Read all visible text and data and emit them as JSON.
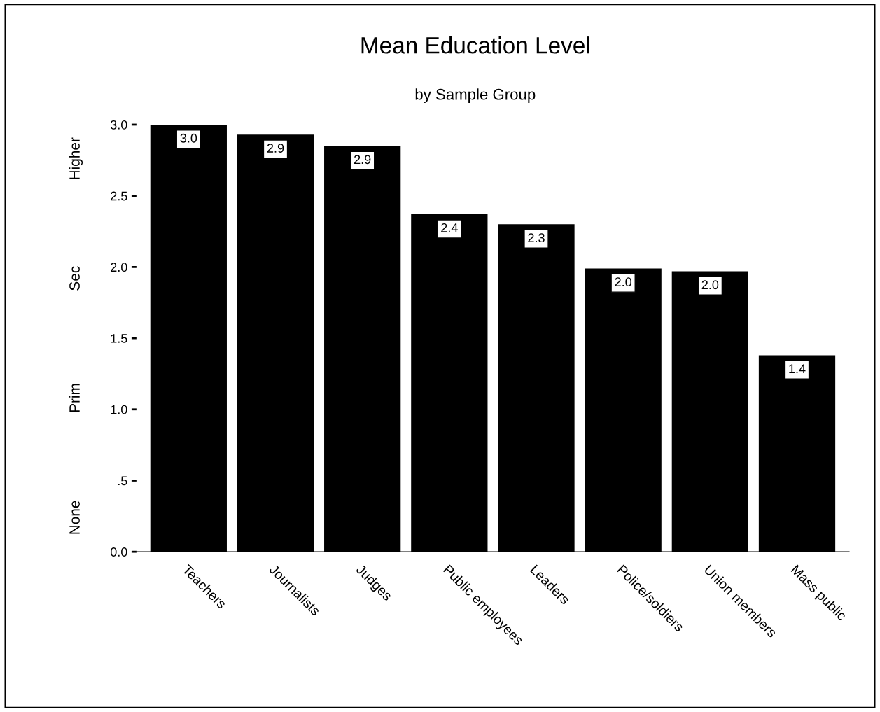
{
  "chart_data": {
    "type": "bar",
    "title": "Mean Education Level",
    "subtitle": "by Sample Group",
    "categories": [
      "Teachers",
      "Journalists",
      "Judges",
      "Public employees",
      "Leaders",
      "Police/soldiers",
      "Union members",
      "Mass public"
    ],
    "values": [
      3.0,
      2.93,
      2.85,
      2.37,
      2.3,
      1.99,
      1.97,
      1.38
    ],
    "value_labels": [
      "3.0",
      "2.9",
      "2.9",
      "2.4",
      "2.3",
      "2.0",
      "2.0",
      "1.4"
    ],
    "color": "#000000",
    "ylim": [
      0,
      3.0
    ],
    "yticks": [
      {
        "value": 0,
        "label": "0.0"
      },
      {
        "value": 0.5,
        "label": ".5"
      },
      {
        "value": 1.0,
        "label": "1.0"
      },
      {
        "value": 1.5,
        "label": "1.5"
      },
      {
        "value": 2.0,
        "label": "2.0"
      },
      {
        "value": 2.5,
        "label": "2.5"
      },
      {
        "value": 3.0,
        "label": "3.0"
      }
    ],
    "annotations": [
      "Higher",
      "Sec",
      "Prim",
      "None"
    ],
    "grid": false,
    "legend": false
  }
}
